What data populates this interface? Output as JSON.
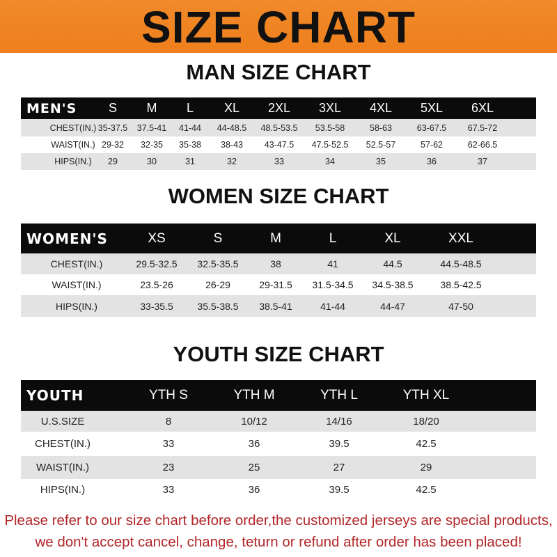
{
  "banner": {
    "title": "SIZE CHART",
    "color": "#ef7f1c"
  },
  "men": {
    "title": "MAN SIZE CHART",
    "header": [
      "MEN'S",
      "S",
      "M",
      "L",
      "XL",
      "2XL",
      "3XL",
      "4XL",
      "5XL",
      "6XL"
    ],
    "rows": [
      [
        "CHEST(IN.)",
        "35-37.5",
        "37.5-41",
        "41-44",
        "44-48.5",
        "48.5-53.5",
        "53.5-58",
        "58-63",
        "63-67.5",
        "67.5-72"
      ],
      [
        "WAIST(IN.)",
        "29-32",
        "32-35",
        "35-38",
        "38-43",
        "43-47.5",
        "47.5-52.5",
        "52.5-57",
        "57-62",
        "62-66.5"
      ],
      [
        "HIPS(IN.)",
        "29",
        "30",
        "31",
        "32",
        "33",
        "34",
        "35",
        "36",
        "37"
      ]
    ]
  },
  "women": {
    "title": "WOMEN SIZE CHART",
    "header": [
      "WOMEN'S",
      "XS",
      "S",
      "M",
      "L",
      "XL",
      "XXL"
    ],
    "rows": [
      [
        "CHEST(IN.)",
        "29.5-32.5",
        "32.5-35.5",
        "38",
        "41",
        "44.5",
        "44.5-48.5"
      ],
      [
        "WAIST(IN.)",
        "23.5-26",
        "26-29",
        "29-31.5",
        "31.5-34.5",
        "34.5-38.5",
        "38.5-42.5"
      ],
      [
        "HIPS(IN.)",
        "33-35.5",
        "35.5-38.5",
        "38.5-41",
        "41-44",
        "44-47",
        "47-50"
      ]
    ]
  },
  "youth": {
    "title": "YOUTH SIZE CHART",
    "header": [
      "YOUTH",
      "YTH S",
      "YTH M",
      "YTH L",
      "YTH XL"
    ],
    "rows": [
      [
        "U.S.SIZE",
        "8",
        "10/12",
        "14/16",
        "18/20"
      ],
      [
        "CHEST(IN.)",
        "33",
        "36",
        "39.5",
        "42.5"
      ],
      [
        "WAIST(IN.)",
        "23",
        "25",
        "27",
        "29"
      ],
      [
        "HIPS(IN.)",
        "33",
        "36",
        "39.5",
        "42.5"
      ]
    ]
  },
  "footer": {
    "line1": "Please refer to our size chart before order,the customized jerseys are special products,",
    "line2": "we don't accept cancel, change, teturn or refund after order has been placed!",
    "color": "#b3262a"
  }
}
